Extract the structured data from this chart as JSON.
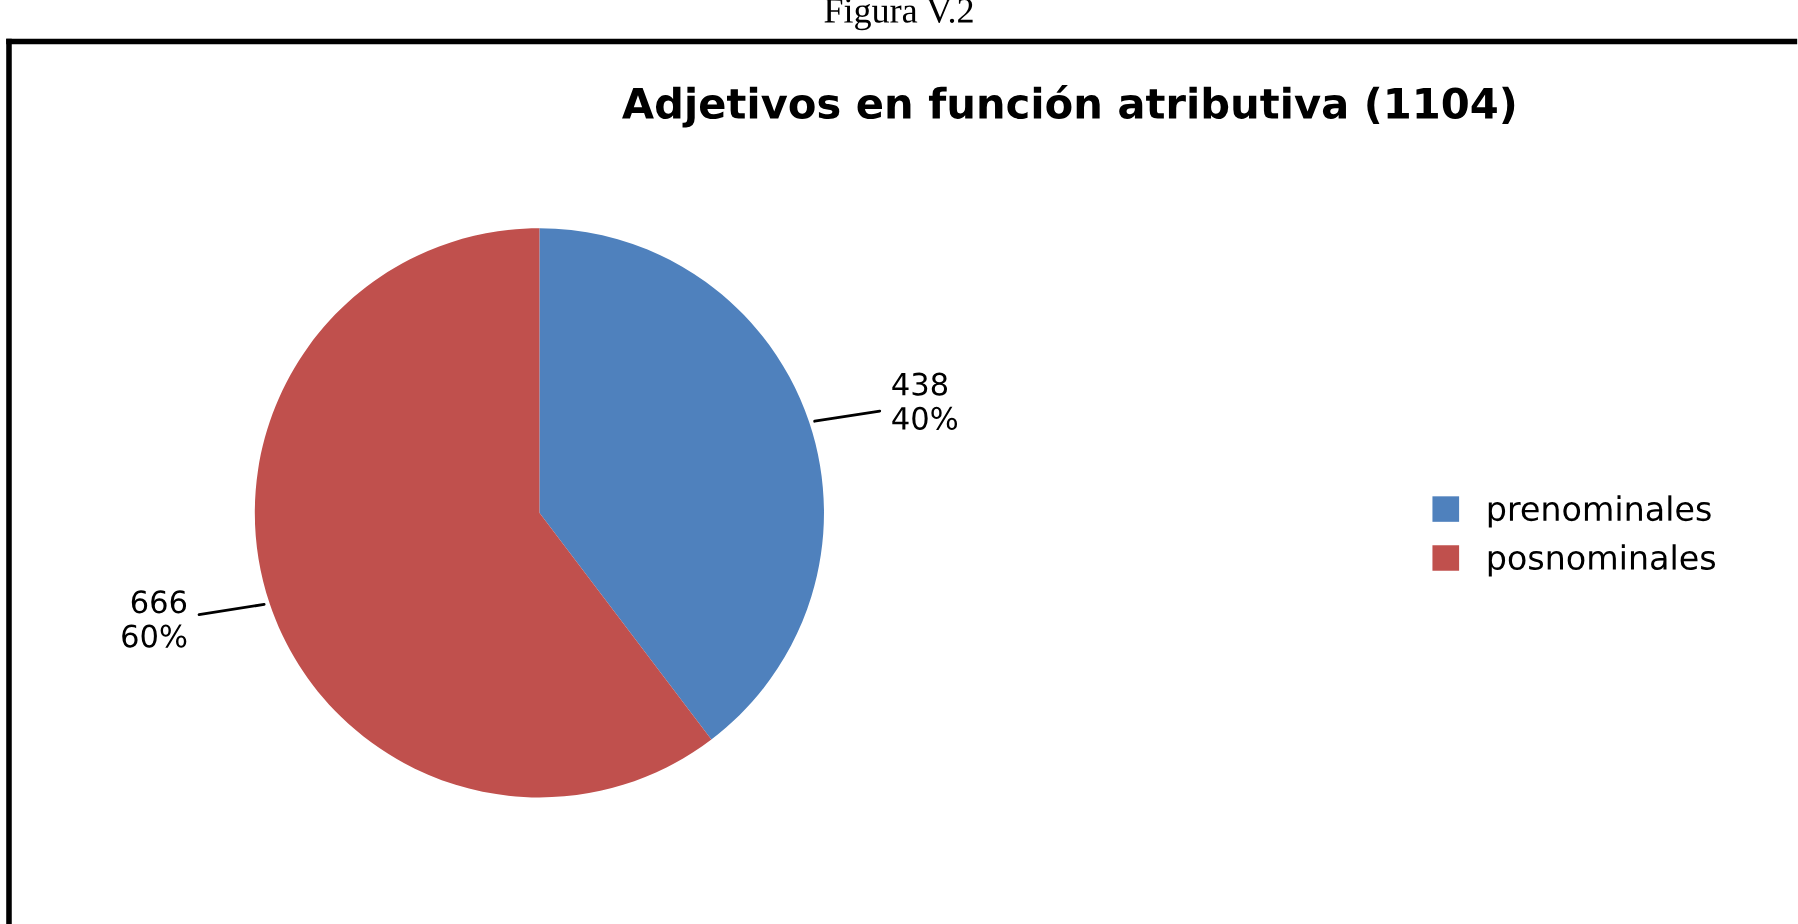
{
  "chart_data": {
    "type": "pie",
    "title": "Adjetivos en función atributiva (1104)",
    "categories": [
      "prenominales",
      "posnominales"
    ],
    "values": [
      438,
      666
    ],
    "colors": [
      "#4f81bd",
      "#c0504d"
    ],
    "value_labels": [
      "438\n40%",
      "666\n60%"
    ],
    "legend": "right",
    "annotations": [
      "Figura V.2"
    ]
  }
}
